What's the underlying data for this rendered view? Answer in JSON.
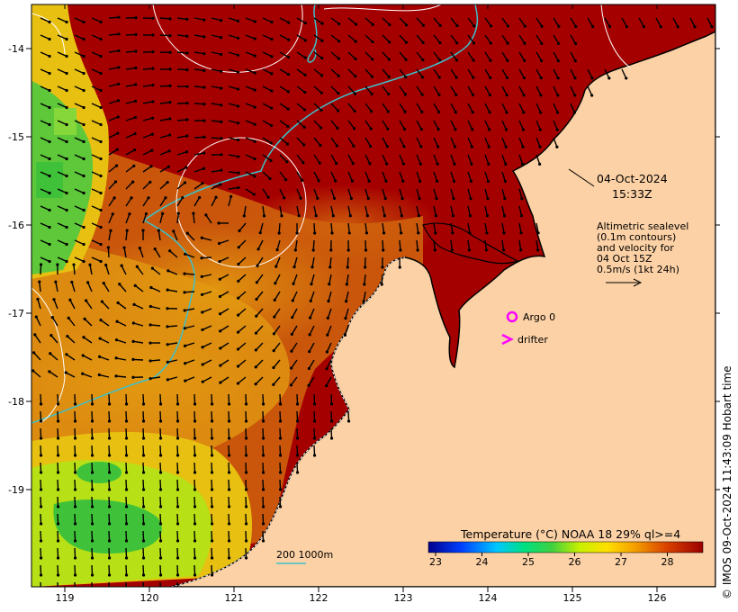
{
  "map": {
    "lon_ticks": [
      "119",
      "120",
      "121",
      "122",
      "123",
      "124",
      "125",
      "126"
    ],
    "lat_ticks": [
      "-14",
      "-15",
      "-16",
      "-17",
      "-18",
      "-19"
    ],
    "timestamp_date": "04-Oct-2024",
    "timestamp_time": "15:33Z",
    "info_lines": [
      "Altimetric sealevel",
      "(0.1m contours)",
      "and velocity for",
      "04 Oct 15Z",
      "0.5m/s (1kt 24h)"
    ],
    "legend_argo": "Argo 0",
    "legend_drifter": "drifter",
    "bathy_label": "200  1000m",
    "colorbar_title": "Temperature (°C) NOAA 18 29% ql>=4",
    "colorbar_ticks": [
      "23",
      "24",
      "25",
      "26",
      "27",
      "28"
    ],
    "credit": "© IMOS 09-Oct-2024 11:43:09 Hobart time",
    "colors": {
      "land": "#fcd1a5",
      "sst_hot": "#a50000",
      "sst_warm": "#c84a0a",
      "sst_mid": "#e0900c",
      "sst_cool": "#f2d000",
      "sst_cold": "#3fc23a",
      "argo_marker": "#ff00ff",
      "drifter_marker": "#ff00ff",
      "bathymetry_line": "#3ec0c8",
      "contour_line": "#ffffff"
    }
  }
}
